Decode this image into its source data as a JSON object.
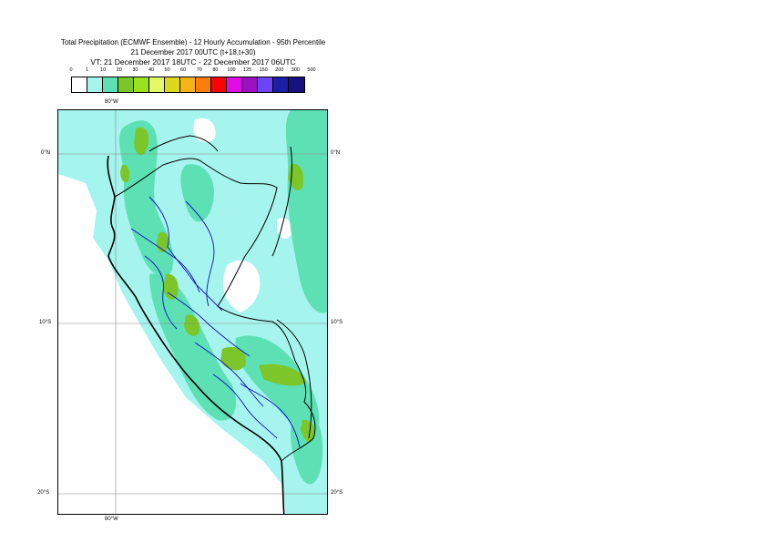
{
  "title": {
    "line1": "Total Precipitation (ECMWF Ensemble) - 12 Hourly Accumulation - 95th Percentile",
    "line2": "21 December 2017 00UTC (t+18,t+30)",
    "line3": "VT: 21 December 2017 18UTC - 22 December 2017 06UTC"
  },
  "scale": {
    "labels": [
      "0",
      "1",
      "10",
      "20",
      "30",
      "40",
      "50",
      "60",
      "70",
      "80",
      "100",
      "125",
      "150",
      "200",
      "300",
      "500"
    ],
    "colors": [
      "#ffffff",
      "#a6f4ee",
      "#5ce0b4",
      "#7cc629",
      "#9be21e",
      "#e4f86a",
      "#dcd81c",
      "#f5b416",
      "#f97d0f",
      "#fb0303",
      "#e10be6",
      "#9c12c1",
      "#6a45f3",
      "#1a1fa5",
      "#16117c"
    ]
  },
  "map": {
    "lon_labels": {
      "top": "80°W",
      "bottom": "80°W"
    },
    "lat_labels": {
      "north": "0°N",
      "mid": "10°S",
      "south": "20°S"
    },
    "colors": {
      "light": "#a6f4ee",
      "medium": "#5ce0b4",
      "green": "#7cc629",
      "border": "#000000",
      "admin": "#0f0fc8",
      "grid": "#888888"
    }
  }
}
